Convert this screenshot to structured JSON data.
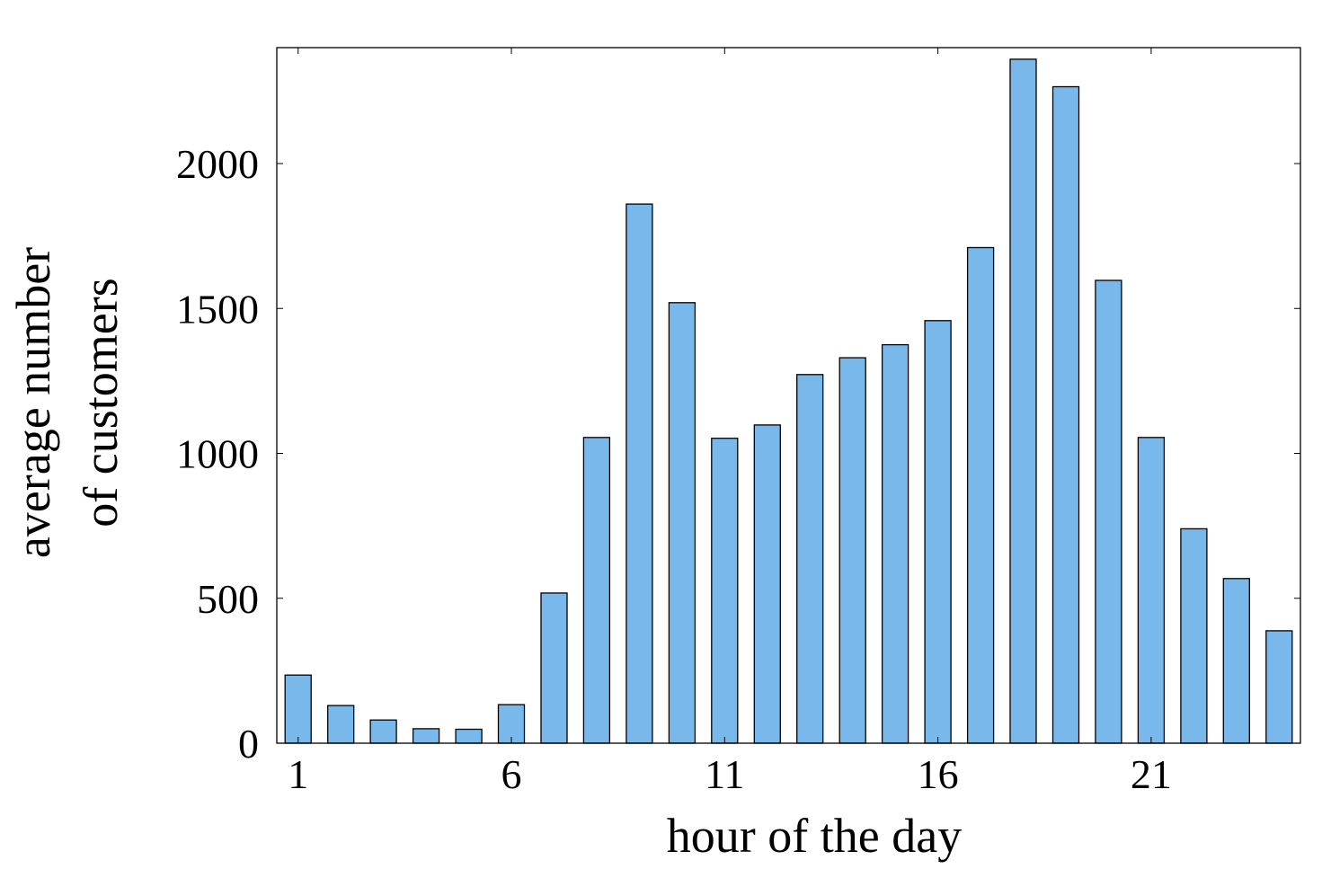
{
  "chart_data": {
    "type": "bar",
    "categories": [
      1,
      2,
      3,
      4,
      5,
      6,
      7,
      8,
      9,
      10,
      11,
      12,
      13,
      14,
      15,
      16,
      17,
      18,
      19,
      20,
      21,
      22,
      23,
      24
    ],
    "values": [
      235,
      130,
      80,
      50,
      48,
      133,
      518,
      1055,
      1860,
      1520,
      1052,
      1098,
      1272,
      1330,
      1375,
      1458,
      1710,
      2360,
      2265,
      1597,
      1055,
      740,
      568,
      388
    ],
    "title": "",
    "xlabel": "hour of the day",
    "ylabel_lines": [
      "average number",
      "of customers"
    ],
    "ylim": [
      0,
      2400
    ],
    "xticks": [
      1,
      6,
      11,
      16,
      21
    ],
    "yticks": [
      0,
      500,
      1000,
      1500,
      2000
    ],
    "bar_color": "#78b8ea",
    "edge_color": "#000000",
    "grid": false,
    "legend": "none"
  }
}
